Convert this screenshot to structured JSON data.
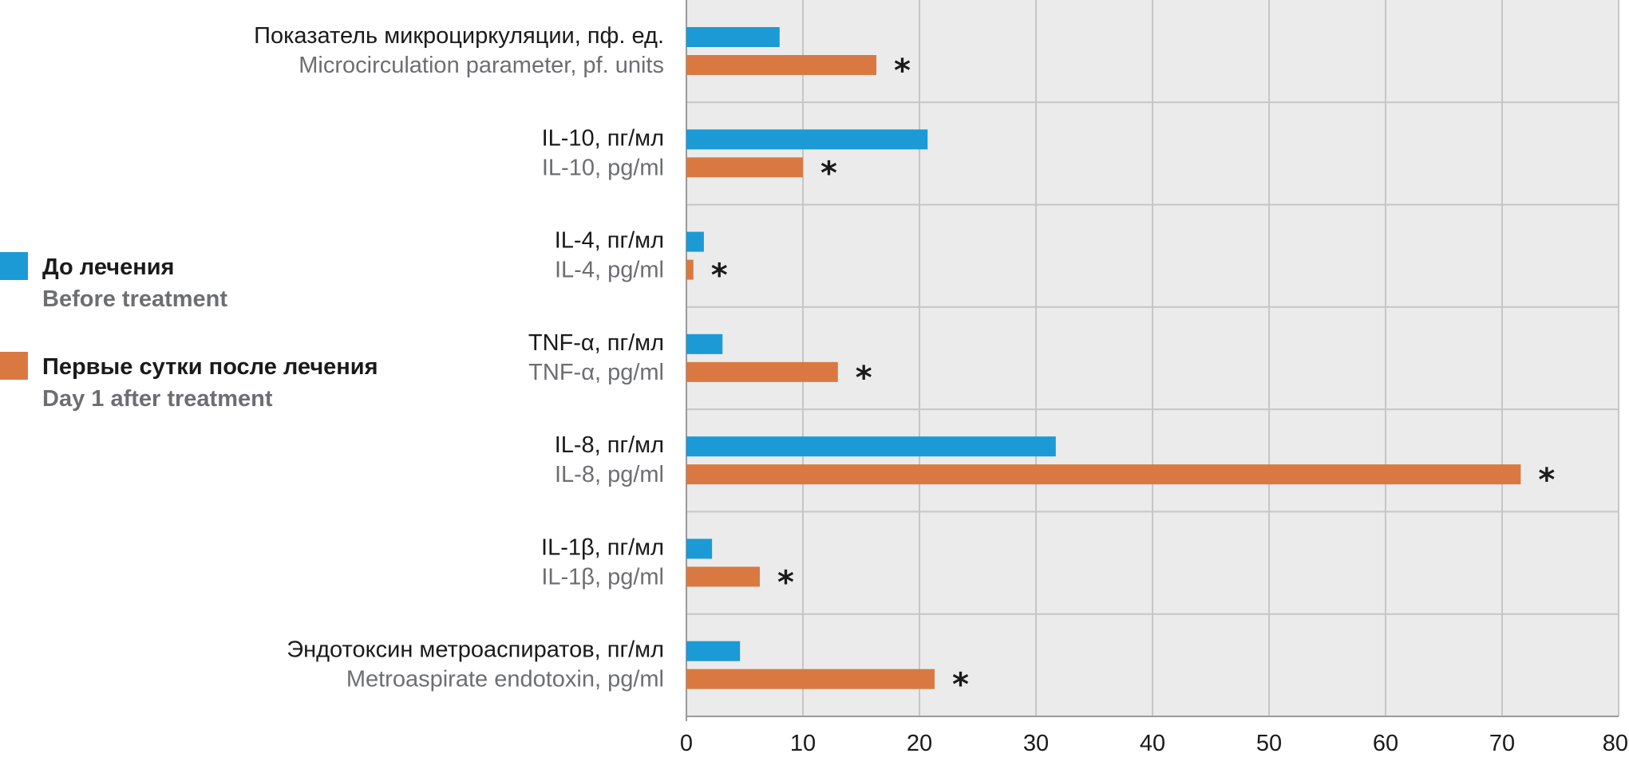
{
  "chart_data": {
    "type": "bar",
    "orientation": "horizontal",
    "categories": [
      {
        "ru": "Показатель микроциркуляции, пф. ед.",
        "en": "Microcirculation parameter, pf. units"
      },
      {
        "ru": "IL-10, пг/мл",
        "en": "IL-10, pg/ml"
      },
      {
        "ru": "IL-4, пг/мл",
        "en": "IL-4, pg/ml"
      },
      {
        "ru": "TNF-α, пг/мл",
        "en": "TNF-α, pg/ml"
      },
      {
        "ru": "IL-8, пг/мл",
        "en": "IL-8, pg/ml"
      },
      {
        "ru": "IL-1β, пг/мл",
        "en": "IL-1β, pg/ml"
      },
      {
        "ru": "Эндотоксин метроаспиратов, пг/мл",
        "en": "Metroaspirate endotoxin, pg/ml"
      }
    ],
    "series": [
      {
        "name_ru": "До лечения",
        "name_en": "Before treatment",
        "color": "#1b9ad6",
        "values": [
          8.0,
          20.7,
          1.5,
          3.1,
          31.7,
          2.2,
          4.6
        ]
      },
      {
        "name_ru": "Первые сутки после лечения",
        "name_en": "Day 1 after treatment",
        "color": "#d97941",
        "values": [
          16.3,
          10.0,
          0.6,
          13.0,
          71.6,
          6.3,
          21.3
        ]
      }
    ],
    "significance_marker": "*",
    "significant": [
      true,
      true,
      true,
      true,
      true,
      true,
      true
    ],
    "xlim": [
      0,
      80
    ],
    "xticks": [
      "0",
      "10",
      "20",
      "30",
      "40",
      "50",
      "60",
      "70",
      "80"
    ],
    "grid": true,
    "legend_position": "left",
    "plot_background": "#ebebeb",
    "grid_color": "#c6c6c6"
  }
}
